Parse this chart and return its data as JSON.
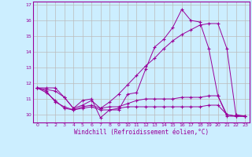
{
  "xlabel": "Windchill (Refroidissement éolien,°C)",
  "bg_color": "#cceeff",
  "line_color": "#990099",
  "grid_color": "#bbbbbb",
  "xlim": [
    -0.5,
    23.5
  ],
  "ylim": [
    9.5,
    17.2
  ],
  "yticks": [
    10,
    11,
    12,
    13,
    14,
    15,
    16,
    17
  ],
  "xticks": [
    0,
    1,
    2,
    3,
    4,
    5,
    6,
    7,
    8,
    9,
    10,
    11,
    12,
    13,
    14,
    15,
    16,
    17,
    18,
    19,
    20,
    21,
    22,
    23
  ],
  "series": [
    [
      11.7,
      11.7,
      11.7,
      11.1,
      10.4,
      10.9,
      11.0,
      9.8,
      10.3,
      10.3,
      11.3,
      11.4,
      12.9,
      14.3,
      14.8,
      15.55,
      16.7,
      16.0,
      15.9,
      14.2,
      11.2,
      9.9,
      9.9,
      9.9
    ],
    [
      11.7,
      11.6,
      11.5,
      11.1,
      10.4,
      10.6,
      10.9,
      10.4,
      10.8,
      11.3,
      11.9,
      12.5,
      13.1,
      13.6,
      14.2,
      14.7,
      15.1,
      15.4,
      15.7,
      15.8,
      15.8,
      14.2,
      10.0,
      9.9
    ],
    [
      11.7,
      11.4,
      10.9,
      10.4,
      10.3,
      10.5,
      10.6,
      10.4,
      10.5,
      10.5,
      10.7,
      10.9,
      11.0,
      11.0,
      11.0,
      11.0,
      11.1,
      11.1,
      11.1,
      11.2,
      11.2,
      10.0,
      9.9,
      9.9
    ],
    [
      11.7,
      11.5,
      10.8,
      10.5,
      10.3,
      10.4,
      10.5,
      10.3,
      10.3,
      10.4,
      10.5,
      10.5,
      10.5,
      10.5,
      10.5,
      10.5,
      10.5,
      10.5,
      10.5,
      10.6,
      10.6,
      10.0,
      9.9,
      9.9
    ]
  ]
}
